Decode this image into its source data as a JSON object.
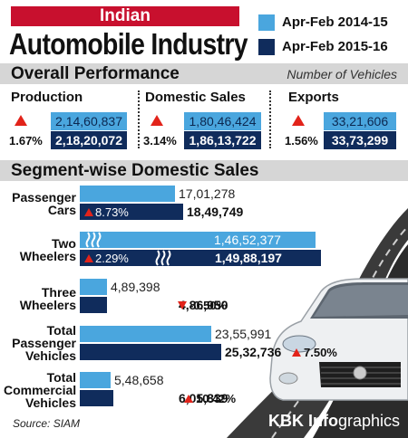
{
  "header": {
    "title_top": "Indian",
    "title_main": "Automobile Industry",
    "legend": [
      {
        "label": "Apr-Feb 2014-15",
        "color": "#4aa6de"
      },
      {
        "label": "Apr-Feb 2015-16",
        "color": "#102c5c"
      }
    ]
  },
  "overall": {
    "heading": "Overall Performance",
    "unit_note": "Number of Vehicles",
    "items": [
      {
        "title": "Production",
        "prev": "2,14,60,837",
        "curr": "2,18,20,072",
        "change": "1.67%",
        "direction": "up"
      },
      {
        "title": "Domestic Sales",
        "prev": "1,80,46,424",
        "curr": "1,86,13,722",
        "change": "3.14%",
        "direction": "up"
      },
      {
        "title": "Exports",
        "prev": "33,21,606",
        "curr": "33,73,299",
        "change": "1.56%",
        "direction": "up"
      }
    ]
  },
  "segments_heading": "Segment-wise Domestic Sales",
  "chart_data": {
    "type": "bar",
    "title": "Segment-wise Domestic Sales",
    "categories": [
      "Passenger Cars",
      "Two Wheelers",
      "Three Wheelers",
      "Total Passenger Vehicles",
      "Total Commercial Vehicles"
    ],
    "series": [
      {
        "name": "Apr-Feb 2014-15",
        "values": [
          1701278,
          14652377,
          489398,
          2355991,
          548658
        ]
      },
      {
        "name": "Apr-Feb 2015-16",
        "values": [
          1849749,
          14988197,
          486950,
          2532736,
          605839
        ]
      }
    ],
    "value_labels_prev": [
      "17,01,278",
      "1,46,52,377",
      "4,89,398",
      "23,55,991",
      "5,48,658"
    ],
    "value_labels_curr": [
      "18,49,749",
      "1,49,88,197",
      "4,86,950",
      "25,32,736",
      "6,05,839"
    ],
    "changes": [
      "8.73%",
      "2.29%",
      "-0.50%",
      "7.50%",
      "10.42%"
    ],
    "change_direction": [
      "up",
      "up",
      "down",
      "up",
      "up"
    ],
    "broken_axis_categories": [
      "Two Wheelers"
    ]
  },
  "label_lines": [
    [
      "Passenger",
      "Cars"
    ],
    [
      "Two",
      "Wheelers"
    ],
    [
      "Three",
      "Wheelers"
    ],
    [
      "Total",
      "Passenger",
      "Vehicles"
    ],
    [
      "Total",
      "Commercial",
      "Vehicles"
    ]
  ],
  "footer": {
    "source": "Source: SIAM",
    "credit_a": "KBK Info",
    "credit_b": "graphics"
  }
}
